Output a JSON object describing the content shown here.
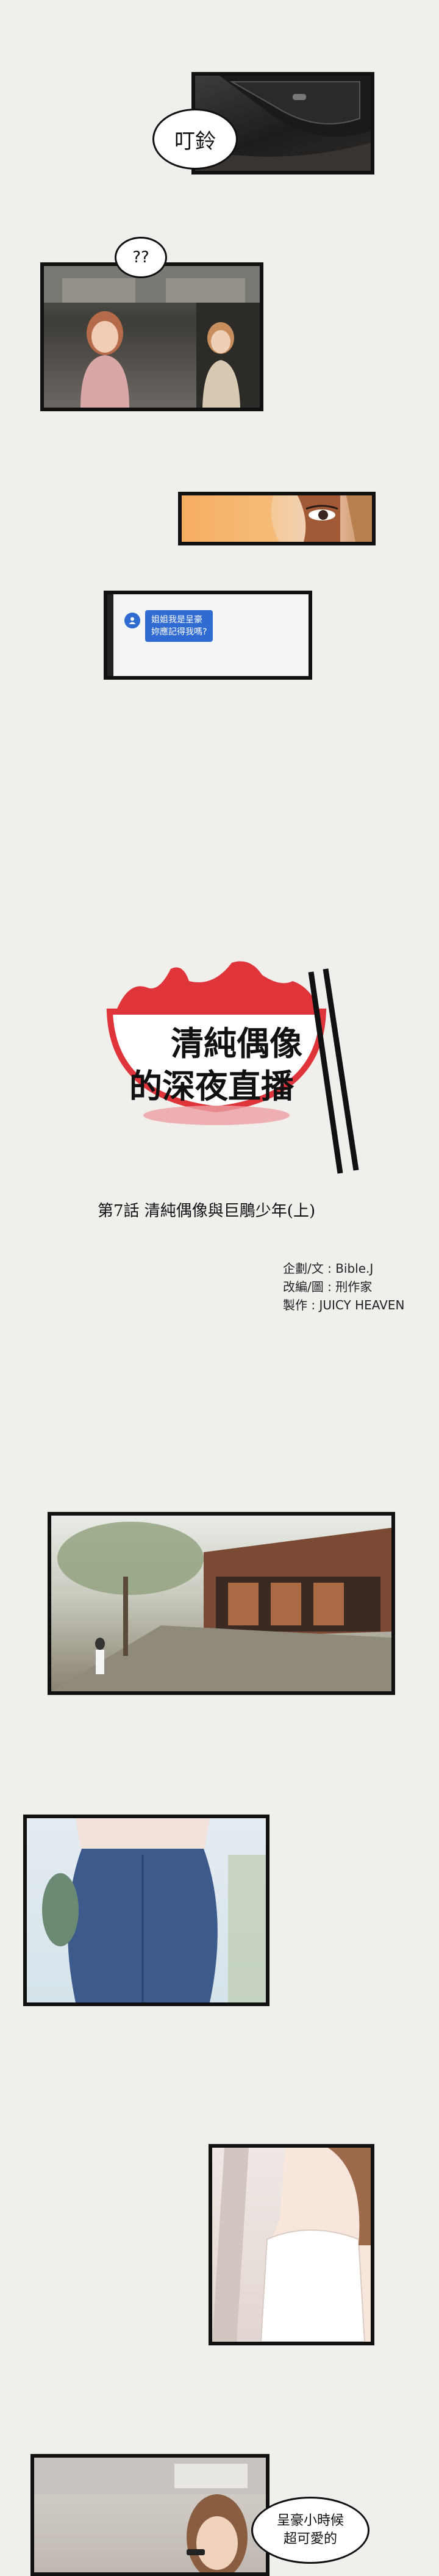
{
  "panels": {
    "phone_ring": {
      "sfx": "叮鈴"
    },
    "train": {
      "thought": "??"
    },
    "message": {
      "sender_avatar": "user-icon",
      "text_line1": "姐姐我是呈豪",
      "text_line2": "妳應記得我嗎?"
    },
    "last": {
      "speech_line1": "呈豪小時候",
      "speech_line2": "超可愛的"
    }
  },
  "title_card": {
    "title_line1": "清純偶像",
    "title_line2": "的深夜直播",
    "episode": "第7話 清純偶像與巨鵰少年(上)",
    "credits": [
      {
        "label": "企劃/文 : ",
        "value": "Bible.J"
      },
      {
        "label": "改編/圖 : ",
        "value": "刑作家"
      },
      {
        "label": "製作 : ",
        "value": "JUICY HEAVEN"
      }
    ]
  },
  "colors": {
    "background": "#f1efec",
    "bowl_red": "#e0343b",
    "bubble_blue": "#2f6bd1"
  }
}
